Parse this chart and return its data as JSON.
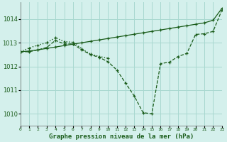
{
  "title": "Graphe pression niveau de la mer (hPa)",
  "bg_color": "#d4f0ec",
  "grid_color": "#a8d8d0",
  "line_color": "#1a5c1a",
  "xlim": [
    0,
    23
  ],
  "ylim": [
    1009.5,
    1014.7
  ],
  "yticks": [
    1010,
    1011,
    1012,
    1013,
    1014
  ],
  "xtick_labels": [
    "0",
    "1",
    "2",
    "3",
    "4",
    "5",
    "6",
    "7",
    "8",
    "9",
    "10",
    "11",
    "12",
    "13",
    "14",
    "15",
    "16",
    "17",
    "18",
    "19",
    "20",
    "21",
    "22",
    "23"
  ],
  "curve_straight_x": [
    0,
    1,
    2,
    3,
    4,
    5,
    6,
    7,
    8,
    9,
    10,
    11,
    12,
    13,
    14,
    15,
    16,
    17,
    18,
    19,
    20,
    21,
    22,
    23
  ],
  "curve_straight_y": [
    1012.62,
    1012.65,
    1012.7,
    1012.76,
    1012.82,
    1012.88,
    1012.94,
    1013.0,
    1013.06,
    1013.12,
    1013.18,
    1013.24,
    1013.3,
    1013.36,
    1013.42,
    1013.48,
    1013.54,
    1013.6,
    1013.66,
    1013.72,
    1013.78,
    1013.84,
    1013.95,
    1014.45
  ],
  "curve_mid_x": [
    0,
    1,
    2,
    3,
    4,
    5,
    6,
    7,
    8,
    9,
    10
  ],
  "curve_mid_y": [
    1012.62,
    1012.78,
    1012.9,
    1013.0,
    1013.21,
    1013.05,
    1013.02,
    1012.75,
    1012.52,
    1012.42,
    1012.35
  ],
  "curve_dip_x": [
    0,
    1,
    2,
    3,
    4,
    5,
    6,
    7,
    8,
    9,
    10,
    11,
    12,
    13,
    14,
    15,
    16,
    17,
    18,
    19,
    20,
    21,
    22,
    23
  ],
  "curve_dip_y": [
    1012.62,
    1012.62,
    1012.7,
    1012.8,
    1013.1,
    1012.95,
    1012.95,
    1012.7,
    1012.5,
    1012.38,
    1012.2,
    1011.85,
    1011.3,
    1010.75,
    1010.05,
    1010.0,
    1012.12,
    1012.18,
    1012.42,
    1012.55,
    1013.35,
    1013.38,
    1013.48,
    1014.38
  ]
}
